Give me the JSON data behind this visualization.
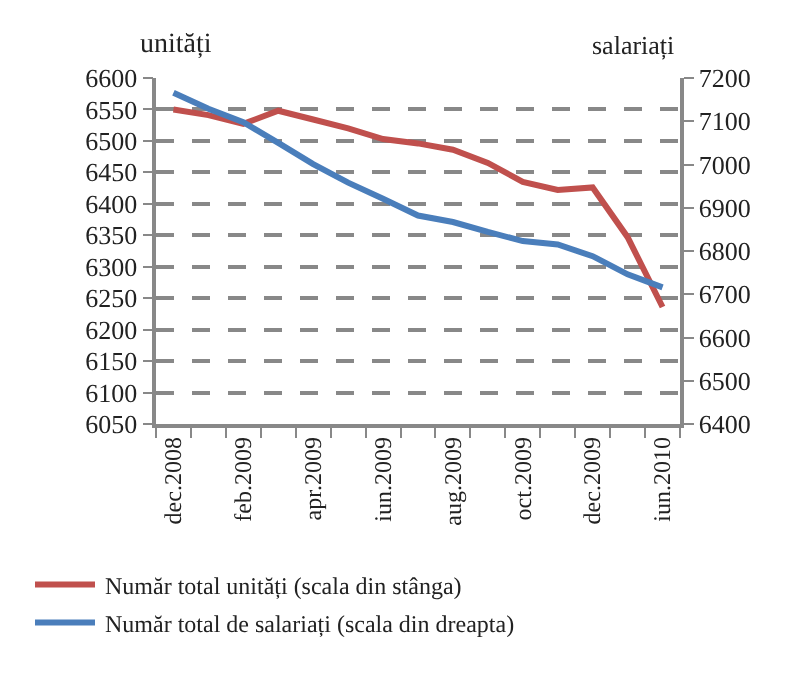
{
  "chart_data": {
    "type": "line",
    "ylabel": "unități",
    "y2label": "salariați",
    "categories": [
      "dec.2008",
      null,
      "feb.2009",
      null,
      "apr.2009",
      null,
      "iun.2009",
      null,
      "aug.2009",
      null,
      "oct.2009",
      null,
      "dec.2009",
      null,
      "iun.2010"
    ],
    "series": [
      {
        "name": "Număr total unități (scala din stânga)",
        "color": "#c0504d",
        "values": [
          6550,
          6541,
          6527,
          6548,
          6534,
          6520,
          6503,
          6496,
          6486,
          6465,
          6435,
          6422,
          6426,
          6347,
          6236
        ]
      },
      {
        "name": "Număr total de salariați (scala din dreapta)",
        "color": "#4a7ebb",
        "axis": "y2",
        "values": [
          7166,
          7129,
          7098,
          7050,
          7001,
          6958,
          6921,
          6882,
          6867,
          6844,
          6823,
          6815,
          6788,
          6746,
          6716
        ]
      }
    ],
    "ylim": [
      6050,
      6600
    ],
    "yticks": [
      6050,
      6100,
      6150,
      6200,
      6250,
      6300,
      6350,
      6400,
      6450,
      6500,
      6550,
      6600
    ],
    "y2lim": [
      6400,
      7200
    ],
    "y2ticks": [
      6400,
      6500,
      6600,
      6700,
      6800,
      6900,
      7000,
      7100,
      7200
    ],
    "grid": "y",
    "legend": "bottom",
    "marker": "none",
    "line_style": "solid"
  }
}
